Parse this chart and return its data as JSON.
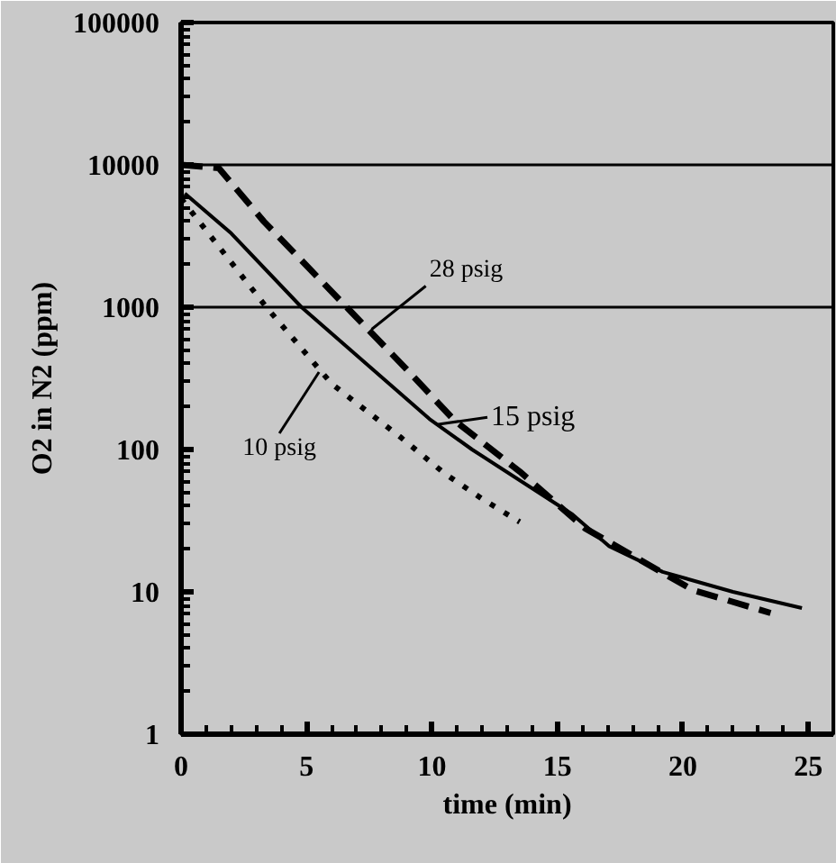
{
  "chart_data": {
    "type": "line",
    "xlabel": "time (min)",
    "ylabel": "O2 in N2 (ppm)",
    "log": "y",
    "xlim": [
      0,
      26
    ],
    "xticks": [
      0,
      5,
      10,
      15,
      20,
      25
    ],
    "ylim": [
      1,
      100000
    ],
    "yticks": [
      1,
      10,
      100,
      1000,
      10000,
      100000
    ],
    "grid": false,
    "ref_lines": [
      {
        "axis": "y",
        "value": 10000,
        "color": "#000000"
      },
      {
        "axis": "y",
        "value": 1000,
        "color": "#000000"
      }
    ],
    "series": [
      {
        "color": "#000000",
        "line_style": "dotted",
        "x": [
          0,
          3.4,
          6,
          8.8,
          10.5,
          12,
          13.5
        ],
        "values": [
          5800,
          1000,
          290,
          120,
          68,
          45,
          31
        ]
      },
      {
        "color": "#000000",
        "line_style": "solid",
        "x": [
          0.15,
          2,
          4.8,
          9.9,
          11.6,
          15.6,
          17.05,
          19.2,
          22,
          24.75
        ],
        "values": [
          6300,
          3300,
          1000,
          164,
          100,
          35,
          21,
          13.8,
          10,
          7.7
        ]
      },
      {
        "color": "#000000",
        "line_style": "dashed",
        "x": [
          0,
          1.5,
          3.3,
          6.8,
          8.9,
          10.9,
          13.5,
          16.1,
          18.5,
          20.4,
          23.5
        ],
        "values": [
          10000,
          9500,
          4000,
          920,
          380,
          160,
          70,
          28,
          16,
          10.3,
          7.1
        ]
      }
    ],
    "annotations": [
      {
        "text": "28 psig",
        "x": 7.6,
        "y": 700
      },
      {
        "text": "15 psig",
        "x": 10.2,
        "y": 150
      },
      {
        "text": "10 psig",
        "x": 5.5,
        "y": 350
      }
    ]
  }
}
